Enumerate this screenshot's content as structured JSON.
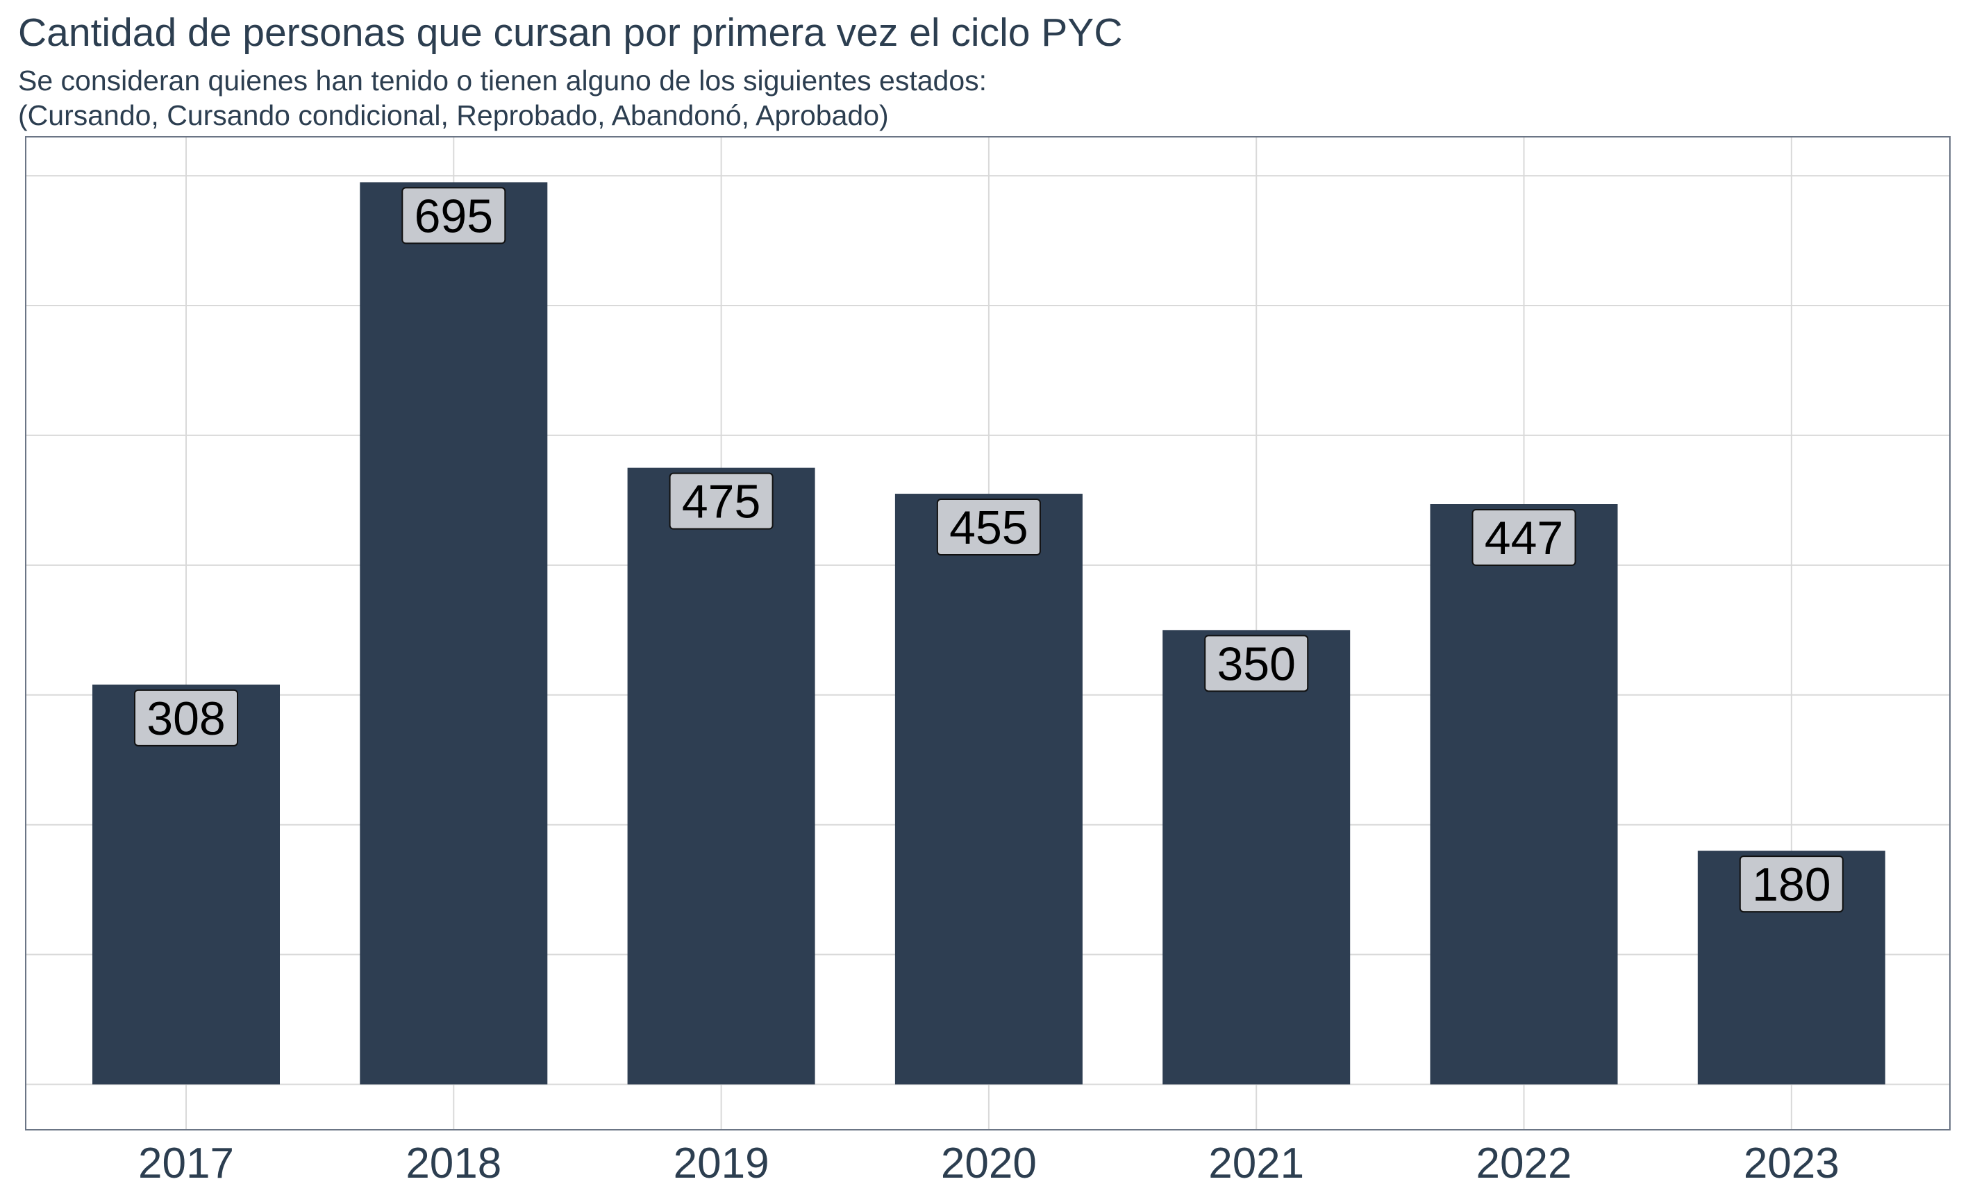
{
  "chart_data": {
    "type": "bar",
    "title": "Cantidad de personas que cursan por primera vez el ciclo PYC",
    "subtitle_lines": [
      "Se consideran quienes han tenido o tienen alguno de los siguientes estados:",
      "(Cursando, Cursando condicional, Reprobado, Abandonó, Aprobado)"
    ],
    "xlabel": "",
    "ylabel": "",
    "categories": [
      "2017",
      "2018",
      "2019",
      "2020",
      "2021",
      "2022",
      "2023"
    ],
    "values": [
      308,
      695,
      475,
      455,
      350,
      447,
      180
    ],
    "data_labels": [
      "308",
      "695",
      "475",
      "455",
      "350",
      "447",
      "180"
    ],
    "ylim": [
      -35,
      730
    ],
    "y_gridlines": [
      0,
      100,
      200,
      300,
      400,
      500,
      600,
      700
    ],
    "y_tick_labels_shown": false,
    "grid": true,
    "legend": "none",
    "colors": {
      "bar": "#2e3e52",
      "label_box": "#c6c9cf",
      "gridline": "#d9d9d9",
      "panel_border": "#6b7585",
      "text": "#2c3e50"
    }
  }
}
